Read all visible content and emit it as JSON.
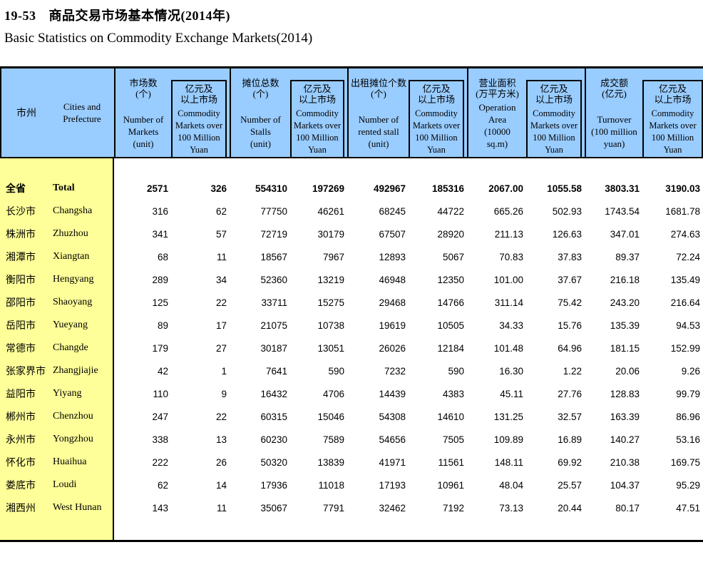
{
  "title": {
    "code": "19-53",
    "zh": "商品交易市场基本情况(2014年)",
    "en": "Basic Statistics on Commodity Exchange Markets(2014)"
  },
  "colors": {
    "header_bg": "#99CCFF",
    "row_header_bg": "#FFFF99",
    "border": "#000000"
  },
  "table": {
    "row_header": {
      "zh": "市州",
      "en": "Cities and\nPrefecture"
    },
    "col_groups": [
      {
        "main_zh": "市场数\n(个)",
        "main_en": "Number of\nMarkets\n(unit)",
        "sub_zh": "亿元及\n以上市场",
        "sub_en": "Commodity\nMarkets over\n100 Million\nYuan"
      },
      {
        "main_zh": "摊位总数\n(个)",
        "main_en": "Number of\nStalls\n(unit)",
        "sub_zh": "亿元及\n以上市场",
        "sub_en": "Commodity\nMarkets over\n100 Million\nYuan"
      },
      {
        "main_zh": "出租摊位个数\n(个)",
        "main_en": "Number of\nrented stall\n(unit)",
        "sub_zh": "亿元及\n以上市场",
        "sub_en": "Commodity\nMarkets over\n100 Million\nYuan"
      },
      {
        "main_zh": "营业面积\n(万平方米)",
        "main_en": "Operation\nArea\n(10000\nsq.m)",
        "sub_zh": "亿元及\n以上市场",
        "sub_en": "Commodity\nMarkets over\n100 Million\nYuan"
      },
      {
        "main_zh": "成交额\n(亿元)",
        "main_en": "Turnover\n(100 million\nyuan)",
        "sub_zh": "亿元及\n以上市场",
        "sub_en": "Commodity\nMarkets over\n100 Million\nYuan"
      }
    ],
    "rows": [
      {
        "zh": "全省",
        "en": "Total",
        "bold": true,
        "values": [
          "2571",
          "326",
          "554310",
          "197269",
          "492967",
          "185316",
          "2067.00",
          "1055.58",
          "3803.31",
          "3190.03"
        ]
      },
      {
        "zh": "长沙市",
        "en": "Changsha",
        "bold": false,
        "values": [
          "316",
          "62",
          "77750",
          "46261",
          "68245",
          "44722",
          "665.26",
          "502.93",
          "1743.54",
          "1681.78"
        ]
      },
      {
        "zh": "株洲市",
        "en": "Zhuzhou",
        "bold": false,
        "values": [
          "341",
          "57",
          "72719",
          "30179",
          "67507",
          "28920",
          "211.13",
          "126.63",
          "347.01",
          "274.63"
        ]
      },
      {
        "zh": "湘潭市",
        "en": "Xiangtan",
        "bold": false,
        "values": [
          "68",
          "11",
          "18567",
          "7967",
          "12893",
          "5067",
          "70.83",
          "37.83",
          "89.37",
          "72.24"
        ]
      },
      {
        "zh": "衡阳市",
        "en": "Hengyang",
        "bold": false,
        "values": [
          "289",
          "34",
          "52360",
          "13219",
          "46948",
          "12350",
          "101.00",
          "37.67",
          "216.18",
          "135.49"
        ]
      },
      {
        "zh": "邵阳市",
        "en": "Shaoyang",
        "bold": false,
        "values": [
          "125",
          "22",
          "33711",
          "15275",
          "29468",
          "14766",
          "311.14",
          "75.42",
          "243.20",
          "216.64"
        ]
      },
      {
        "zh": "岳阳市",
        "en": "Yueyang",
        "bold": false,
        "values": [
          "89",
          "17",
          "21075",
          "10738",
          "19619",
          "10505",
          "34.33",
          "15.76",
          "135.39",
          "94.53"
        ]
      },
      {
        "zh": "常德市",
        "en": "Changde",
        "bold": false,
        "values": [
          "179",
          "27",
          "30187",
          "13051",
          "26026",
          "12184",
          "101.48",
          "64.96",
          "181.15",
          "152.99"
        ]
      },
      {
        "zh": "张家界市",
        "en": "Zhangjiajie",
        "bold": false,
        "values": [
          "42",
          "1",
          "7641",
          "590",
          "7232",
          "590",
          "16.30",
          "1.22",
          "20.06",
          "9.26"
        ]
      },
      {
        "zh": "益阳市",
        "en": "Yiyang",
        "bold": false,
        "values": [
          "110",
          "9",
          "16432",
          "4706",
          "14439",
          "4383",
          "45.11",
          "27.76",
          "128.83",
          "99.79"
        ]
      },
      {
        "zh": "郴州市",
        "en": "Chenzhou",
        "bold": false,
        "values": [
          "247",
          "22",
          "60315",
          "15046",
          "54308",
          "14610",
          "131.25",
          "32.57",
          "163.39",
          "86.96"
        ]
      },
      {
        "zh": "永州市",
        "en": "Yongzhou",
        "bold": false,
        "values": [
          "338",
          "13",
          "60230",
          "7589",
          "54656",
          "7505",
          "109.89",
          "16.89",
          "140.27",
          "53.16"
        ]
      },
      {
        "zh": "怀化市",
        "en": "Huaihua",
        "bold": false,
        "values": [
          "222",
          "26",
          "50320",
          "13839",
          "41971",
          "11561",
          "148.11",
          "69.92",
          "210.38",
          "169.75"
        ]
      },
      {
        "zh": "娄底市",
        "en": "Loudi",
        "bold": false,
        "values": [
          "62",
          "14",
          "17936",
          "11018",
          "17193",
          "10961",
          "48.04",
          "25.57",
          "104.37",
          "95.29"
        ]
      },
      {
        "zh": "湘西州",
        "en": "West Hunan",
        "bold": false,
        "values": [
          "143",
          "11",
          "35067",
          "7791",
          "32462",
          "7192",
          "73.13",
          "20.44",
          "80.17",
          "47.51"
        ]
      }
    ]
  }
}
